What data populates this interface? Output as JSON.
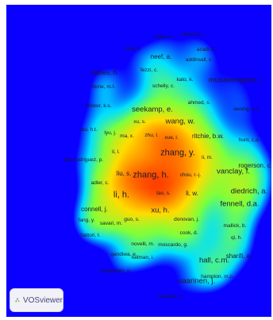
{
  "app": {
    "brand": "VOSviewer",
    "brand_icon": "vosviewer-logo-icon"
  },
  "colors": {
    "background": "#0a00ff",
    "heat_low": "#00e0ff",
    "heat_mid": "#7fff3a",
    "heat_high": "#ffdd00",
    "heat_peak": "#ff4000"
  },
  "labels": [
    {
      "text": "kajan, e.",
      "weight": 1
    },
    {
      "text": "dawson, j.",
      "weight": 1
    },
    {
      "text": "king, b.",
      "weight": 1
    },
    {
      "text": "azadi, h.",
      "weight": 1
    },
    {
      "text": "neef, a.",
      "weight": 2
    },
    {
      "text": "addinsall, c.",
      "weight": 1
    },
    {
      "text": "dahles, h.",
      "weight": 2
    },
    {
      "text": "fezzi, c.",
      "weight": 1
    },
    {
      "text": "kato, k.",
      "weight": 1
    },
    {
      "text": "musavengane, r.",
      "weight": 3
    },
    {
      "text": "stone, m.t.",
      "weight": 1
    },
    {
      "text": "schelly, c.",
      "weight": 1
    },
    {
      "text": "ahmed, s.",
      "weight": 1
    },
    {
      "text": "bricker, k.s.",
      "weight": 1
    },
    {
      "text": "seekamp, e.",
      "weight": 3
    },
    {
      "text": "awang, a.h.",
      "weight": 1
    },
    {
      "text": "xu, s.",
      "weight": 1
    },
    {
      "text": "wang, w.",
      "weight": 3
    },
    {
      "text": "bui, h.t.",
      "weight": 1
    },
    {
      "text": "lyu, j.",
      "weight": 1
    },
    {
      "text": "ma, x.",
      "weight": 1
    },
    {
      "text": "zhu, l.",
      "weight": 1
    },
    {
      "text": "xue, l.",
      "weight": 1
    },
    {
      "text": "ritchie, b.w.",
      "weight": 2
    },
    {
      "text": "hunt, c.a.",
      "weight": 1
    },
    {
      "text": "li, l.",
      "weight": 1
    },
    {
      "text": "zhang, y.",
      "weight": 4
    },
    {
      "text": "li, m.",
      "weight": 1
    },
    {
      "text": "diaz-rodriguez, p.",
      "weight": 1
    },
    {
      "text": "rogerson, c.m.",
      "weight": 2
    },
    {
      "text": "liu, s.",
      "weight": 2
    },
    {
      "text": "zhang, h.",
      "weight": 4
    },
    {
      "text": "chou, r.-j.",
      "weight": 1
    },
    {
      "text": "vanclay, f.",
      "weight": 3
    },
    {
      "text": "adler, c.",
      "weight": 1
    },
    {
      "text": "li, h.",
      "weight": 4
    },
    {
      "text": "tao, s.",
      "weight": 1
    },
    {
      "text": "li, w.",
      "weight": 2
    },
    {
      "text": "diedrich, a.",
      "weight": 3
    },
    {
      "text": "fennell, d.a.",
      "weight": 3
    },
    {
      "text": "connell, j.",
      "weight": 2
    },
    {
      "text": "xu, h.",
      "weight": 3
    },
    {
      "text": "guo, s.",
      "weight": 1
    },
    {
      "text": "donovan, j.",
      "weight": 1
    },
    {
      "text": "fang, y.",
      "weight": 1
    },
    {
      "text": "savari, m.",
      "weight": 1
    },
    {
      "text": "mallick, b.",
      "weight": 1
    },
    {
      "text": "hattori, t.",
      "weight": 1
    },
    {
      "text": "cook, d.",
      "weight": 1
    },
    {
      "text": "qi, h.",
      "weight": 1
    },
    {
      "text": "novelli, m.",
      "weight": 1
    },
    {
      "text": "moscardo, g.",
      "weight": 1
    },
    {
      "text": "gandiwa, e.",
      "weight": 1
    },
    {
      "text": "sharifi, a.",
      "weight": 2
    },
    {
      "text": "kelman, i.",
      "weight": 1
    },
    {
      "text": "hall, c.m.",
      "weight": 3
    },
    {
      "text": "angelstam, p.",
      "weight": 1
    },
    {
      "text": "hampton, m.p.",
      "weight": 1
    },
    {
      "text": "saarinen, j.",
      "weight": 3
    },
    {
      "text": "vinodan, a.",
      "weight": 1
    }
  ]
}
